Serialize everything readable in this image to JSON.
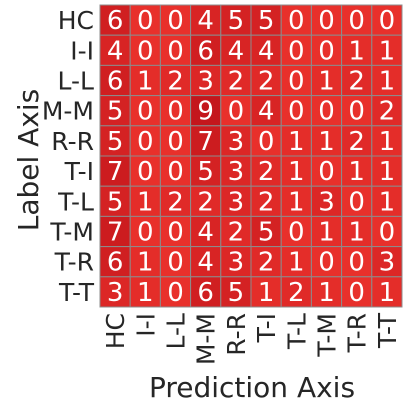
{
  "chart_data": {
    "type": "heatmap",
    "title": "",
    "xlabel": "Prediction Axis",
    "ylabel": "Label Axis",
    "x_categories": [
      "HC",
      "I-I",
      "L-L",
      "M-M",
      "R-R",
      "T-I",
      "T-L",
      "T-M",
      "T-R",
      "T-T"
    ],
    "y_categories": [
      "HC",
      "I-I",
      "L-L",
      "M-M",
      "R-R",
      "T-I",
      "T-L",
      "T-M",
      "T-R",
      "T-T"
    ],
    "values": [
      [
        6,
        0,
        0,
        4,
        5,
        5,
        0,
        0,
        0,
        0
      ],
      [
        4,
        0,
        0,
        6,
        4,
        4,
        0,
        0,
        1,
        1
      ],
      [
        6,
        1,
        2,
        3,
        2,
        2,
        0,
        1,
        2,
        1
      ],
      [
        5,
        0,
        0,
        9,
        0,
        4,
        0,
        0,
        0,
        2
      ],
      [
        5,
        0,
        0,
        7,
        3,
        0,
        1,
        1,
        2,
        1
      ],
      [
        7,
        0,
        0,
        5,
        3,
        2,
        1,
        0,
        1,
        1
      ],
      [
        5,
        1,
        2,
        2,
        3,
        2,
        1,
        3,
        0,
        1
      ],
      [
        7,
        0,
        0,
        4,
        2,
        5,
        0,
        1,
        1,
        0
      ],
      [
        6,
        1,
        0,
        4,
        3,
        2,
        1,
        0,
        0,
        3
      ],
      [
        3,
        1,
        0,
        6,
        5,
        1,
        2,
        1,
        0,
        1
      ]
    ],
    "colors": {
      "low": "#e8302b",
      "high": "#c4161c",
      "grid_line": "#8c8c8c",
      "cell_text": "#ffffff"
    },
    "legend": "none",
    "grid": true
  }
}
